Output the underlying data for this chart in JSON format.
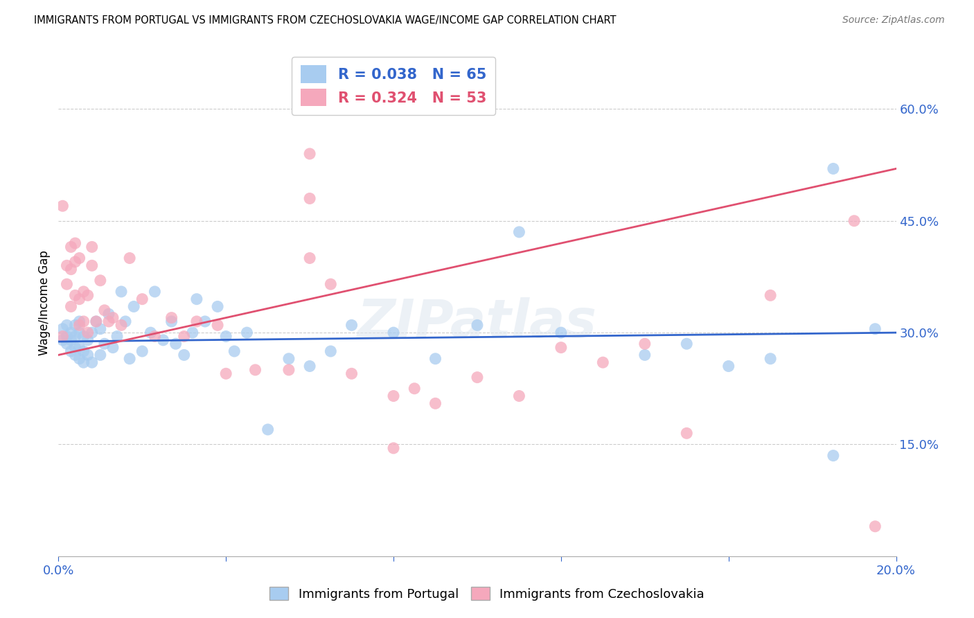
{
  "title": "IMMIGRANTS FROM PORTUGAL VS IMMIGRANTS FROM CZECHOSLOVAKIA WAGE/INCOME GAP CORRELATION CHART",
  "source": "Source: ZipAtlas.com",
  "xlabel": "",
  "ylabel": "Wage/Income Gap",
  "xlim": [
    0.0,
    0.2
  ],
  "ylim": [
    0.0,
    0.68
  ],
  "xticks": [
    0.0,
    0.04,
    0.08,
    0.12,
    0.16,
    0.2
  ],
  "yticks": [
    0.15,
    0.3,
    0.45,
    0.6
  ],
  "xticklabels": [
    "0.0%",
    "",
    "",
    "",
    "",
    "20.0%"
  ],
  "yticklabels": [
    "15.0%",
    "30.0%",
    "45.0%",
    "60.0%"
  ],
  "blue_label": "Immigrants from Portugal",
  "pink_label": "Immigrants from Czechoslovakia",
  "blue_R": 0.038,
  "blue_N": 65,
  "pink_R": 0.324,
  "pink_N": 53,
  "blue_color": "#A8CCF0",
  "pink_color": "#F5A8BC",
  "blue_line_color": "#3366CC",
  "pink_line_color": "#E05070",
  "watermark": "ZIPatlas",
  "blue_scatter_x": [
    0.001,
    0.001,
    0.002,
    0.002,
    0.002,
    0.003,
    0.003,
    0.003,
    0.004,
    0.004,
    0.004,
    0.004,
    0.005,
    0.005,
    0.005,
    0.005,
    0.006,
    0.006,
    0.006,
    0.007,
    0.007,
    0.008,
    0.008,
    0.009,
    0.01,
    0.01,
    0.011,
    0.012,
    0.013,
    0.014,
    0.015,
    0.016,
    0.017,
    0.018,
    0.02,
    0.022,
    0.023,
    0.025,
    0.027,
    0.028,
    0.03,
    0.032,
    0.033,
    0.035,
    0.038,
    0.04,
    0.042,
    0.045,
    0.05,
    0.055,
    0.06,
    0.065,
    0.07,
    0.08,
    0.09,
    0.1,
    0.11,
    0.12,
    0.14,
    0.15,
    0.16,
    0.17,
    0.185,
    0.185,
    0.195
  ],
  "blue_scatter_y": [
    0.29,
    0.305,
    0.285,
    0.295,
    0.31,
    0.275,
    0.29,
    0.3,
    0.27,
    0.28,
    0.295,
    0.31,
    0.265,
    0.28,
    0.3,
    0.315,
    0.26,
    0.275,
    0.295,
    0.27,
    0.29,
    0.26,
    0.3,
    0.315,
    0.27,
    0.305,
    0.285,
    0.325,
    0.28,
    0.295,
    0.355,
    0.315,
    0.265,
    0.335,
    0.275,
    0.3,
    0.355,
    0.29,
    0.315,
    0.285,
    0.27,
    0.3,
    0.345,
    0.315,
    0.335,
    0.295,
    0.275,
    0.3,
    0.17,
    0.265,
    0.255,
    0.275,
    0.31,
    0.3,
    0.265,
    0.31,
    0.435,
    0.3,
    0.27,
    0.285,
    0.255,
    0.265,
    0.52,
    0.135,
    0.305
  ],
  "pink_scatter_x": [
    0.001,
    0.001,
    0.002,
    0.002,
    0.003,
    0.003,
    0.003,
    0.004,
    0.004,
    0.004,
    0.005,
    0.005,
    0.005,
    0.006,
    0.006,
    0.007,
    0.007,
    0.008,
    0.008,
    0.009,
    0.01,
    0.011,
    0.012,
    0.013,
    0.015,
    0.017,
    0.02,
    0.023,
    0.027,
    0.03,
    0.033,
    0.038,
    0.04,
    0.047,
    0.055,
    0.06,
    0.065,
    0.07,
    0.08,
    0.085,
    0.09,
    0.1,
    0.11,
    0.12,
    0.13,
    0.14,
    0.15,
    0.06,
    0.06,
    0.08,
    0.17,
    0.19,
    0.195
  ],
  "pink_scatter_y": [
    0.295,
    0.47,
    0.365,
    0.39,
    0.335,
    0.385,
    0.415,
    0.35,
    0.395,
    0.42,
    0.31,
    0.345,
    0.4,
    0.315,
    0.355,
    0.3,
    0.35,
    0.39,
    0.415,
    0.315,
    0.37,
    0.33,
    0.315,
    0.32,
    0.31,
    0.4,
    0.345,
    0.295,
    0.32,
    0.295,
    0.315,
    0.31,
    0.245,
    0.25,
    0.25,
    0.4,
    0.365,
    0.245,
    0.215,
    0.225,
    0.205,
    0.24,
    0.215,
    0.28,
    0.26,
    0.285,
    0.165,
    0.54,
    0.48,
    0.145,
    0.35,
    0.45,
    0.04
  ],
  "blue_trend_x": [
    0.0,
    0.2
  ],
  "blue_trend_y": [
    0.288,
    0.3
  ],
  "pink_trend_x": [
    0.0,
    0.2
  ],
  "pink_trend_y": [
    0.27,
    0.52
  ]
}
